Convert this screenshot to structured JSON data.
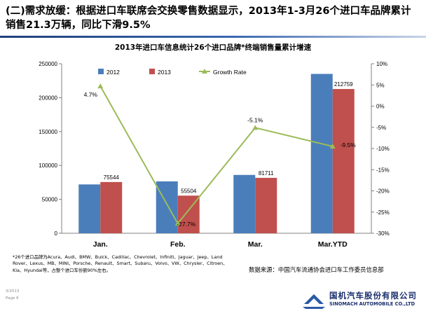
{
  "slide": {
    "title": "(二)需求放缓：根据进口车联席会交换零售数据显示，2013年1-3月26个进口车品牌累计销售21.3万辆，同比下滑9.5%",
    "footnote": "*26个进口品牌为Acura、Audi、BMW、Buick、Cadillac、Chevrolet、Infiniti、Jaguar、Jeep、Land Rover、Lexus、MB、MINI、Porsche、Renault、Smart、Subaru、Volvo、VW、Chrysler、Citroen、Kia、Hyundai等，占整个进口车份额90%左右。",
    "source": "数据来源：中国汽车流通协会进口车工作委员信息部",
    "page_date": "3/2013",
    "page_num": "Page 6"
  },
  "logo": {
    "name_cn": "国机汽车股份有限公司",
    "name_en": "SINOMACH AUTOMOBILE CO.,LTD",
    "icon": "sinomach-logo-icon"
  },
  "chart_data": {
    "type": "bar",
    "title": "2013年进口车信息统计26个进口品牌*终端销售量累计增速",
    "categories": [
      "Jan.",
      "Feb.",
      "Mar.",
      "Mar.YTD"
    ],
    "series": [
      {
        "name": "2012",
        "kind": "bar",
        "axis": "left",
        "color": "#4a7ebb",
        "values": [
          72000,
          76500,
          86000,
          235000
        ]
      },
      {
        "name": "2013",
        "kind": "bar",
        "axis": "left",
        "color": "#c0504d",
        "values": [
          75544,
          55504,
          81711,
          212759
        ]
      },
      {
        "name": "Growth Rate",
        "kind": "line",
        "axis": "right",
        "color": "#9bbb59",
        "values": [
          4.7,
          -27.7,
          -5.1,
          -9.5
        ]
      }
    ],
    "data_labels": {
      "2013": [
        "75544",
        "55504",
        "81711",
        "212759"
      ],
      "Growth Rate": [
        "4.7%",
        "-27.7%",
        "-5.1%",
        "-9.5%"
      ]
    },
    "y_left": {
      "min": 0,
      "max": 250000,
      "ticks": [
        "0",
        "50000",
        "100000",
        "150000",
        "200000",
        "250000"
      ]
    },
    "y_right": {
      "min": -30,
      "max": 10,
      "ticks": [
        "-30%",
        "-25%",
        "-20%",
        "-15%",
        "-10%",
        "-5%",
        "0%",
        "5%",
        "10%"
      ]
    },
    "legend_position": "top"
  }
}
